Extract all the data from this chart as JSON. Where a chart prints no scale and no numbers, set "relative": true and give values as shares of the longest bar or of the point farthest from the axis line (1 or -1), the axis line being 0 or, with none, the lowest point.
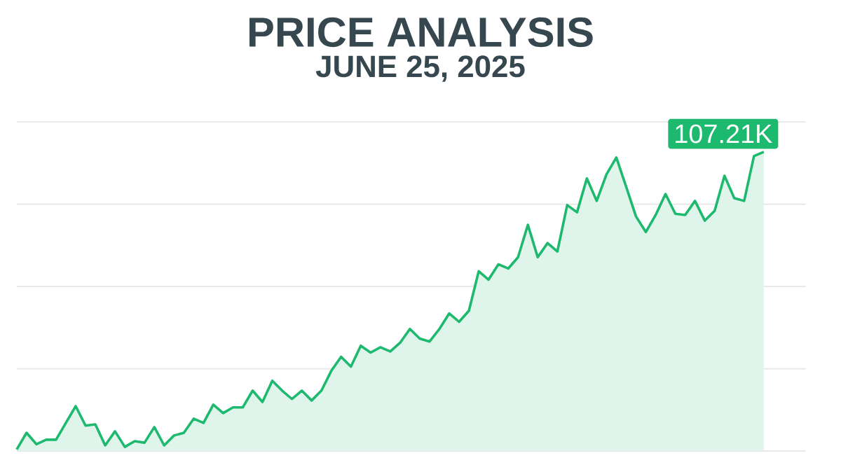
{
  "chart_data": {
    "type": "area",
    "title": "PRICE ANALYSIS",
    "subtitle": "JUNE 25, 2025",
    "relative": true,
    "grid": "y",
    "color": "#1db96e",
    "annotations": [
      "107.21K"
    ],
    "categories": [
      null,
      null,
      null,
      null,
      null,
      null,
      null,
      null,
      null,
      null,
      null,
      null,
      null,
      null,
      null,
      null,
      null,
      null,
      null,
      null,
      null,
      null,
      null,
      null,
      null,
      null,
      null,
      null,
      null,
      null,
      null,
      null,
      null,
      null,
      null,
      null,
      null,
      null,
      null,
      null,
      null,
      null,
      null,
      null,
      null,
      null,
      null,
      null,
      null,
      null,
      null,
      null,
      null,
      null,
      null,
      null,
      null,
      null,
      null,
      null,
      null,
      null,
      null,
      null,
      null,
      null,
      null,
      null,
      null,
      null,
      null,
      null,
      null,
      null,
      null,
      null,
      null
    ],
    "values": [
      0.005,
      0.061,
      0.023,
      0.038,
      0.038,
      0.094,
      0.15,
      0.085,
      0.089,
      0.019,
      0.066,
      0.014,
      0.033,
      0.028,
      0.08,
      0.019,
      0.052,
      0.061,
      0.108,
      0.094,
      0.155,
      0.127,
      0.146,
      0.146,
      0.202,
      0.164,
      0.235,
      0.202,
      0.174,
      0.202,
      0.169,
      0.202,
      0.268,
      0.315,
      0.282,
      0.352,
      0.329,
      0.347,
      0.333,
      0.362,
      0.408,
      0.376,
      0.366,
      0.408,
      0.46,
      0.432,
      0.469,
      0.601,
      0.573,
      0.624,
      0.61,
      0.648,
      0.756,
      0.648,
      0.695,
      0.667,
      0.822,
      0.798,
      0.911,
      0.836,
      0.925,
      0.981,
      0.883,
      0.784,
      0.732,
      0.789,
      0.859,
      0.793,
      0.789,
      0.836,
      0.77,
      0.803,
      0.92,
      0.845,
      0.836,
      0.986,
      1
    ]
  }
}
